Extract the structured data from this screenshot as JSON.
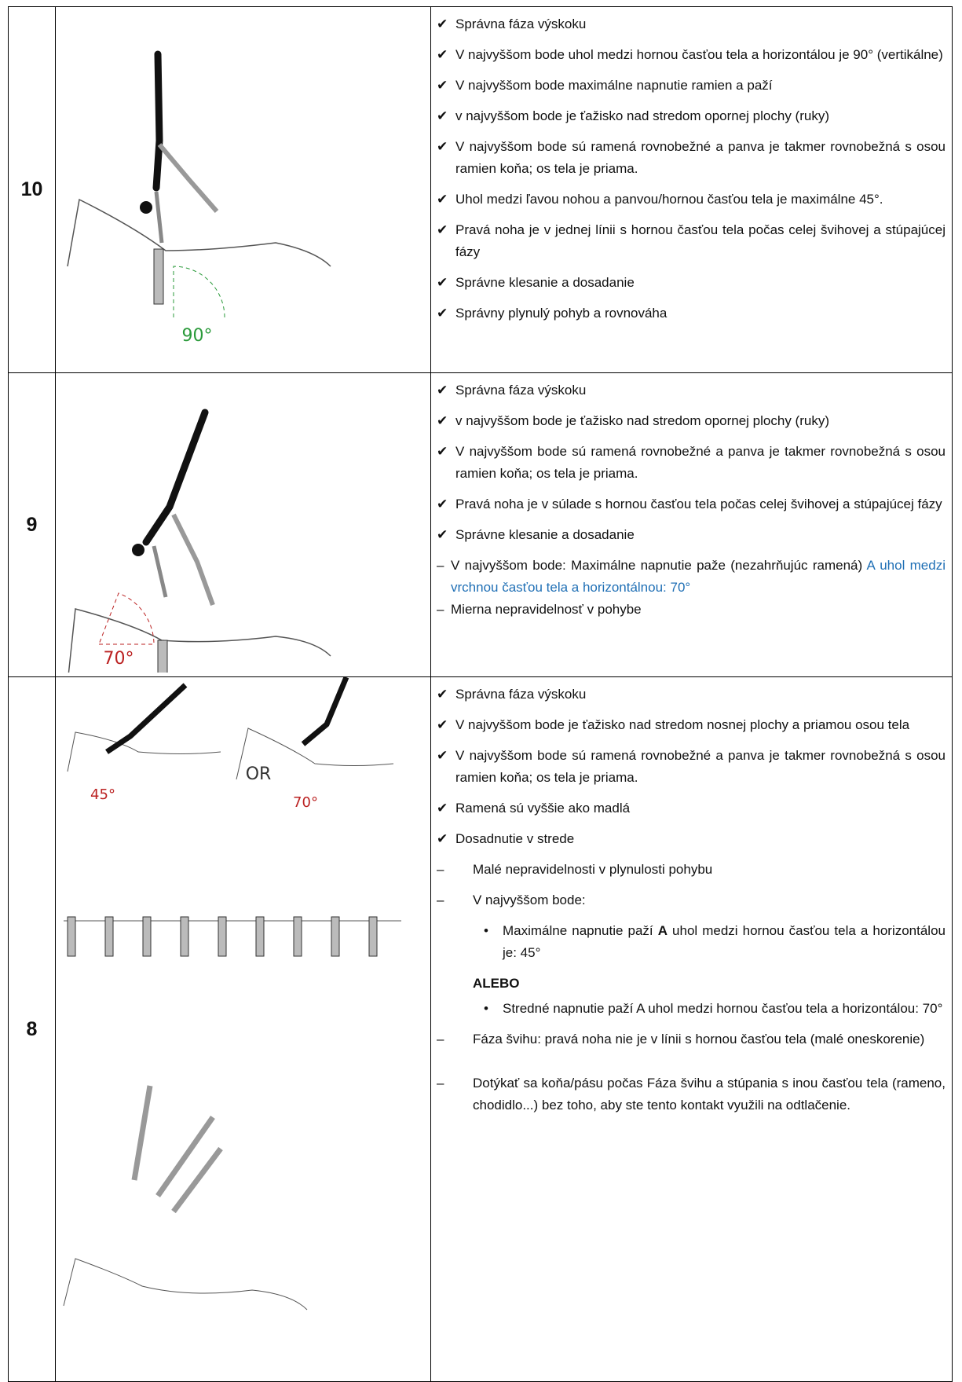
{
  "rows": [
    {
      "number": "10",
      "figure_labels": [
        "90°"
      ],
      "items": [
        {
          "kind": "check",
          "mark": "✔",
          "segments": [
            {
              "text": "Správna fáza výskoku"
            }
          ]
        },
        {
          "kind": "check",
          "mark": "✔",
          "segments": [
            {
              "text": "V najvyššom bode uhol medzi hornou časťou tela a horizontálou je 90° (vertikálne)"
            }
          ]
        },
        {
          "kind": "check",
          "mark": "✔",
          "segments": [
            {
              "text": "V najvyššom bode maximálne napnutie ramien a paží"
            }
          ]
        },
        {
          "kind": "check",
          "mark": "✔",
          "segments": [
            {
              "text": "v najvyššom bode je ťažisko nad stredom opornej plochy (ruky)"
            }
          ]
        },
        {
          "kind": "check",
          "mark": "✔",
          "segments": [
            {
              "text": "V najvyššom bode sú ramená rovnobežné a panva je takmer rovnobežná s osou ramien koňa; os tela je priama."
            }
          ]
        },
        {
          "kind": "check",
          "mark": "✔",
          "segments": [
            {
              "text": "Uhol medzi ľavou nohou a panvou/hornou časťou tela je maximálne 45°."
            }
          ]
        },
        {
          "kind": "check",
          "mark": "✔",
          "segments": [
            {
              "text": "Pravá noha je v jednej línii s hornou časťou tela počas celej švihovej a stúpajúcej fázy"
            }
          ]
        },
        {
          "kind": "check",
          "mark": "✔",
          "segments": [
            {
              "text": "Správne klesanie a dosadanie"
            }
          ]
        },
        {
          "kind": "check",
          "mark": "✔",
          "segments": [
            {
              "text": "Správny plynulý pohyb a rovnováha"
            }
          ]
        }
      ]
    },
    {
      "number": "9",
      "figure_labels": [
        "70°"
      ],
      "items": [
        {
          "kind": "check",
          "mark": "✔",
          "segments": [
            {
              "text": "Správna fáza výskoku"
            }
          ]
        },
        {
          "kind": "check",
          "mark": "✔",
          "segments": [
            {
              "text": "v najvyššom bode je ťažisko nad stredom opornej plochy (ruky)"
            }
          ]
        },
        {
          "kind": "check",
          "mark": "✔",
          "segments": [
            {
              "text": "V najvyššom bode sú ramená rovnobežné a panva je takmer rovnobežná s osou ramien koňa; os tela je priama."
            }
          ]
        },
        {
          "kind": "check",
          "mark": "✔",
          "segments": [
            {
              "text": "Pravá noha je v súlade s hornou časťou tela počas celej švihovej a stúpajúcej fázy"
            }
          ]
        },
        {
          "kind": "check",
          "mark": "✔",
          "segments": [
            {
              "text": "Správne klesanie a dosadanie"
            }
          ]
        },
        {
          "kind": "dash",
          "mark": "–",
          "segments": [
            {
              "text": "V najvyššom bode: Maximálne napnutie paže (nezahrňujúc ramená) "
            },
            {
              "text": "A uhol medzi vrchnou časťou tela a horizontálnou: 70°",
              "color": "#1f6fb5"
            }
          ]
        },
        {
          "kind": "dash",
          "mark": "–",
          "segments": [
            {
              "text": "Mierna nepravidelnosť v pohybe"
            }
          ]
        }
      ]
    },
    {
      "number": "8",
      "figure_labels": [
        "45°",
        "OR",
        "70°"
      ],
      "items": [
        {
          "kind": "check",
          "mark": "✔",
          "segments": [
            {
              "text": "Správna fáza výskoku"
            }
          ]
        },
        {
          "kind": "check",
          "mark": "✔",
          "segments": [
            {
              "text": "V najvyššom bode je ťažisko nad stredom nosnej plochy a priamou osou tela"
            }
          ]
        },
        {
          "kind": "check",
          "mark": "✔",
          "segments": [
            {
              "text": "V najvyššom bode sú ramená rovnobežné a panva je takmer rovnobežná s osou ramien koňa; os tela je priama."
            }
          ]
        },
        {
          "kind": "check",
          "mark": "✔",
          "segments": [
            {
              "text": "Ramená sú vyššie ako madlá"
            }
          ]
        },
        {
          "kind": "check",
          "mark": "✔",
          "segments": [
            {
              "text": "Dosadnutie v strede"
            }
          ]
        },
        {
          "kind": "wide-dash",
          "mark": "–",
          "segments": [
            {
              "text": "Malé nepravidelnosti v plynulosti pohybu"
            }
          ]
        },
        {
          "kind": "wide-dash",
          "mark": "–",
          "segments": [
            {
              "text": "V najvyššom bode:"
            }
          ]
        },
        {
          "kind": "bullet",
          "mark": "•",
          "segments": [
            {
              "text": "Maximálne napnutie paží "
            },
            {
              "text": "A",
              "bold": true
            },
            {
              "text": " uhol medzi hornou časťou tela a horizontálou je: 45°"
            }
          ]
        },
        {
          "kind": "label",
          "segments": [
            {
              "text": "ALEBO",
              "bold": true
            }
          ]
        },
        {
          "kind": "bullet",
          "mark": "•",
          "segments": [
            {
              "text": "Stredné napnutie paží A uhol medzi hornou časťou tela a horizontálou: 70°"
            }
          ]
        },
        {
          "kind": "wide-dash",
          "mark": "–",
          "segments": [
            {
              "text": "Fáza švihu: pravá noha nie je v línii s hornou časťou tela (malé oneskorenie)"
            }
          ]
        },
        {
          "kind": "wide-dash-gap",
          "mark": "–",
          "segments": [
            {
              "text": "Dotýkať sa koňa/pásu počas Fáza švihu a stúpania s inou časťou tela (rameno, chodidlo...) bez toho, aby ste tento kontakt využili na odtlačenie."
            }
          ]
        }
      ]
    }
  ]
}
